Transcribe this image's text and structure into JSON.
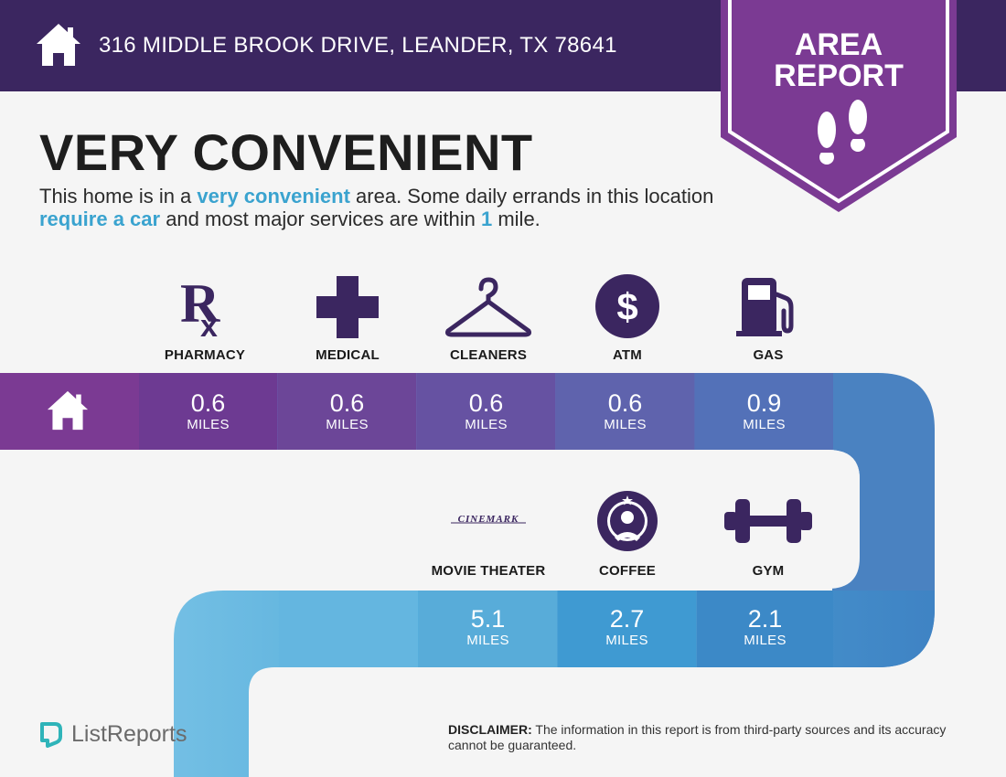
{
  "header": {
    "address": "316 MIDDLE BROOK DRIVE, LEANDER, TX 78641",
    "bg_color": "#3b2660"
  },
  "badge": {
    "line1": "AREA",
    "line2": "REPORT",
    "icon": "footprints-icon",
    "color": "#7b3a93"
  },
  "headline": "VERY CONVENIENT",
  "description": {
    "p1": "This home is in a ",
    "h1": "very convenient",
    "p2": " area. Some daily errands in this location ",
    "h2": "require a car",
    "p3": " and most major services are within ",
    "h3": "1",
    "p4": " mile."
  },
  "services_row1": [
    {
      "label": "PHARMACY",
      "distance": "0.6",
      "unit": "MILES",
      "icon": "rx-icon"
    },
    {
      "label": "MEDICAL",
      "distance": "0.6",
      "unit": "MILES",
      "icon": "medical-cross-icon"
    },
    {
      "label": "CLEANERS",
      "distance": "0.6",
      "unit": "MILES",
      "icon": "hanger-icon"
    },
    {
      "label": "ATM",
      "distance": "0.6",
      "unit": "MILES",
      "icon": "dollar-icon"
    },
    {
      "label": "GAS",
      "distance": "0.9",
      "unit": "MILES",
      "icon": "gas-pump-icon"
    }
  ],
  "services_row2": [
    {
      "label": "MOVIE THEATER",
      "distance": "5.1",
      "unit": "MILES",
      "icon": "cinemark-logo",
      "logo_text": "CINEMARK"
    },
    {
      "label": "COFFEE",
      "distance": "2.7",
      "unit": "MILES",
      "icon": "starbucks-logo"
    },
    {
      "label": "GYM",
      "distance": "2.1",
      "unit": "MILES",
      "icon": "dumbbell-icon"
    }
  ],
  "colors": {
    "accent_blue": "#3aa3cf",
    "purple_dark": "#3b2660",
    "purple": "#7b3a93"
  },
  "footer": {
    "brand": "ListReports",
    "disclaimer_label": "DISCLAIMER:",
    "disclaimer_text": " The information in this report is from third-party sources and its accuracy cannot be guaranteed."
  }
}
